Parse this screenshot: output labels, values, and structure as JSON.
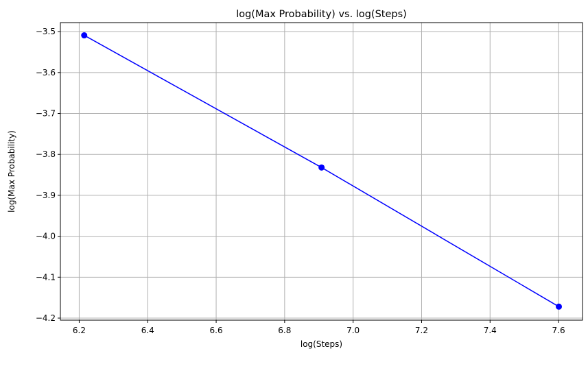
{
  "chart_data": {
    "type": "line",
    "title": "log(Max Probability) vs. log(Steps)",
    "xlabel": "log(Steps)",
    "ylabel": "log(Max Probability)",
    "xlim": [
      6.145,
      7.67
    ],
    "ylim": [
      -4.205,
      -3.478
    ],
    "xticks": [
      6.2,
      6.4,
      6.6,
      6.8,
      7.0,
      7.2,
      7.4,
      7.6
    ],
    "xtick_labels": [
      "6.2",
      "6.4",
      "6.6",
      "6.8",
      "7.0",
      "7.2",
      "7.4",
      "7.6"
    ],
    "yticks": [
      -3.5,
      -3.6,
      -3.7,
      -3.8,
      -3.9,
      -4.0,
      -4.1,
      -4.2
    ],
    "ytick_labels": [
      "−3.5",
      "−3.6",
      "−3.7",
      "−3.8",
      "−3.9",
      "−4.0",
      "−4.1",
      "−4.2"
    ],
    "grid": true,
    "series": [
      {
        "color": "#0000ff",
        "marker": "circle",
        "x": [
          6.2146,
          6.9078,
          7.6009
        ],
        "y": [
          -3.509,
          -3.832,
          -4.172
        ]
      }
    ]
  }
}
